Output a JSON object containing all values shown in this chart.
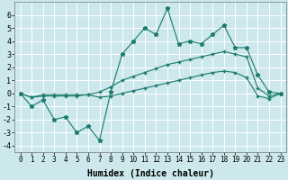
{
  "xlabel": "Humidex (Indice chaleur)",
  "background_color": "#cce8ec",
  "grid_color": "#ffffff",
  "line_color": "#1a7a6e",
  "xlim": [
    -0.5,
    23.5
  ],
  "ylim": [
    -4.5,
    7.0
  ],
  "xticks": [
    0,
    1,
    2,
    3,
    4,
    5,
    6,
    7,
    8,
    9,
    10,
    11,
    12,
    13,
    14,
    15,
    16,
    17,
    18,
    19,
    20,
    21,
    22,
    23
  ],
  "yticks": [
    -4,
    -3,
    -2,
    -1,
    0,
    1,
    2,
    3,
    4,
    5,
    6
  ],
  "line1_x": [
    0,
    1,
    2,
    3,
    4,
    5,
    6,
    7,
    8,
    9,
    10,
    11,
    12,
    13,
    14,
    15,
    16,
    17,
    18,
    19,
    20,
    21,
    22,
    23
  ],
  "line1_y": [
    0,
    -1,
    -0.5,
    -2,
    -1.8,
    -3,
    -2.5,
    -3.6,
    0.1,
    3.0,
    4.0,
    5.0,
    4.5,
    6.5,
    3.8,
    4.0,
    3.8,
    4.5,
    5.2,
    3.5,
    3.5,
    1.4,
    0.1,
    0.0
  ],
  "line2_x": [
    0,
    1,
    2,
    3,
    4,
    5,
    6,
    7,
    8,
    9,
    10,
    11,
    12,
    13,
    14,
    15,
    16,
    17,
    18,
    19,
    20,
    21,
    22,
    23
  ],
  "line2_y": [
    0,
    -0.3,
    -0.2,
    -0.2,
    -0.2,
    -0.2,
    -0.1,
    0.1,
    0.5,
    1.0,
    1.3,
    1.6,
    1.9,
    2.2,
    2.4,
    2.6,
    2.8,
    3.0,
    3.2,
    3.0,
    2.8,
    0.4,
    -0.2,
    0.0
  ],
  "line3_x": [
    0,
    1,
    2,
    3,
    4,
    5,
    6,
    7,
    8,
    9,
    10,
    11,
    12,
    13,
    14,
    15,
    16,
    17,
    18,
    19,
    20,
    21,
    22,
    23
  ],
  "line3_y": [
    0,
    -0.3,
    -0.1,
    -0.1,
    -0.1,
    -0.1,
    -0.1,
    -0.3,
    -0.2,
    0.0,
    0.2,
    0.4,
    0.6,
    0.8,
    1.0,
    1.2,
    1.4,
    1.6,
    1.7,
    1.6,
    1.2,
    -0.2,
    -0.4,
    0.0
  ],
  "tick_fontsize_x": 5.5,
  "tick_fontsize_y": 6.0,
  "xlabel_fontsize": 7.0
}
